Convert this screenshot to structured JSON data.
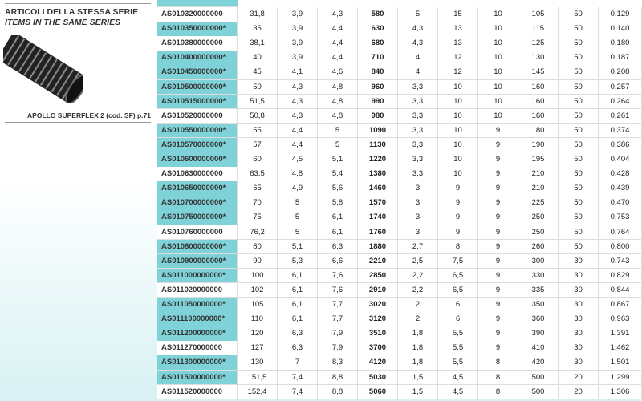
{
  "sidebar": {
    "title": "ARTICOLI DELLA STESSA SERIE",
    "subtitle": "ITEMS IN THE SAME SERIES",
    "caption": "APOLLO SUPERFLEX 2  (cod. SF) p.71"
  },
  "table": {
    "rows": [
      [
        "AS010320000000",
        "31,8",
        "3,9",
        "4,3",
        "580",
        "5",
        "15",
        "10",
        "105",
        "50",
        "0,129"
      ],
      [
        "AS010350000000*",
        "35",
        "3,9",
        "4,4",
        "630",
        "4,3",
        "13",
        "10",
        "115",
        "50",
        "0,140"
      ],
      [
        "AS010380000000",
        "38,1",
        "3,9",
        "4,4",
        "680",
        "4,3",
        "13",
        "10",
        "125",
        "50",
        "0,180"
      ],
      [
        "AS010400000000*",
        "40",
        "3,9",
        "4,4",
        "710",
        "4",
        "12",
        "10",
        "130",
        "50",
        "0,187"
      ],
      [
        "AS010450000000*",
        "45",
        "4,1",
        "4,6",
        "840",
        "4",
        "12",
        "10",
        "145",
        "50",
        "0,208"
      ],
      [
        "AS010500000000*",
        "50",
        "4,3",
        "4,8",
        "960",
        "3,3",
        "10",
        "10",
        "160",
        "50",
        "0,257"
      ],
      [
        "AS010515000000*",
        "51,5",
        "4,3",
        "4,8",
        "990",
        "3,3",
        "10",
        "10",
        "160",
        "50",
        "0,264"
      ],
      [
        "AS010520000000",
        "50,8",
        "4,3",
        "4,8",
        "980",
        "3,3",
        "10",
        "10",
        "160",
        "50",
        "0,261"
      ],
      [
        "AS010550000000*",
        "55",
        "4,4",
        "5",
        "1090",
        "3,3",
        "10",
        "9",
        "180",
        "50",
        "0,374"
      ],
      [
        "AS010570000000*",
        "57",
        "4,4",
        "5",
        "1130",
        "3,3",
        "10",
        "9",
        "190",
        "50",
        "0,386"
      ],
      [
        "AS010600000000*",
        "60",
        "4,5",
        "5,1",
        "1220",
        "3,3",
        "10",
        "9",
        "195",
        "50",
        "0,404"
      ],
      [
        "AS010630000000",
        "63,5",
        "4,8",
        "5,4",
        "1380",
        "3,3",
        "10",
        "9",
        "210",
        "50",
        "0,428"
      ],
      [
        "AS010650000000*",
        "65",
        "4,9",
        "5,6",
        "1460",
        "3",
        "9",
        "9",
        "210",
        "50",
        "0,439"
      ],
      [
        "AS010700000000*",
        "70",
        "5",
        "5,8",
        "1570",
        "3",
        "9",
        "9",
        "225",
        "50",
        "0,470"
      ],
      [
        "AS010750000000*",
        "75",
        "5",
        "6,1",
        "1740",
        "3",
        "9",
        "9",
        "250",
        "50",
        "0,753"
      ],
      [
        "AS010760000000",
        "76,2",
        "5",
        "6,1",
        "1760",
        "3",
        "9",
        "9",
        "250",
        "50",
        "0,764"
      ],
      [
        "AS010800000000*",
        "80",
        "5,1",
        "6,3",
        "1880",
        "2,7",
        "8",
        "9",
        "260",
        "50",
        "0,800"
      ],
      [
        "AS010900000000*",
        "90",
        "5,3",
        "6,6",
        "2210",
        "2,5",
        "7,5",
        "9",
        "300",
        "30",
        "0,743"
      ],
      [
        "AS011000000000*",
        "100",
        "6,1",
        "7,6",
        "2850",
        "2,2",
        "6,5",
        "9",
        "330",
        "30",
        "0,829"
      ],
      [
        "AS011020000000",
        "102",
        "6,1",
        "7,6",
        "2910",
        "2,2",
        "6,5",
        "9",
        "335",
        "30",
        "0,844"
      ],
      [
        "AS011050000000*",
        "105",
        "6,1",
        "7,7",
        "3020",
        "2",
        "6",
        "9",
        "350",
        "30",
        "0,867"
      ],
      [
        "AS011100000000*",
        "110",
        "6,1",
        "7,7",
        "3120",
        "2",
        "6",
        "9",
        "360",
        "30",
        "0,963"
      ],
      [
        "AS011200000000*",
        "120",
        "6,3",
        "7,9",
        "3510",
        "1,8",
        "5,5",
        "9",
        "390",
        "30",
        "1,391"
      ],
      [
        "AS011270000000",
        "127",
        "6,3",
        "7,9",
        "3700",
        "1,8",
        "5,5",
        "9",
        "410",
        "30",
        "1,462"
      ],
      [
        "AS011300000000*",
        "130",
        "7",
        "8,3",
        "4120",
        "1,8",
        "5,5",
        "8",
        "420",
        "30",
        "1,501"
      ],
      [
        "AS011500000000*",
        "151,5",
        "7,4",
        "8,8",
        "5030",
        "1,5",
        "4,5",
        "8",
        "500",
        "20",
        "1,299"
      ],
      [
        "AS011520000000",
        "152,4",
        "7,4",
        "8,8",
        "5060",
        "1,5",
        "4,5",
        "8",
        "500",
        "20",
        "1,306"
      ]
    ]
  }
}
